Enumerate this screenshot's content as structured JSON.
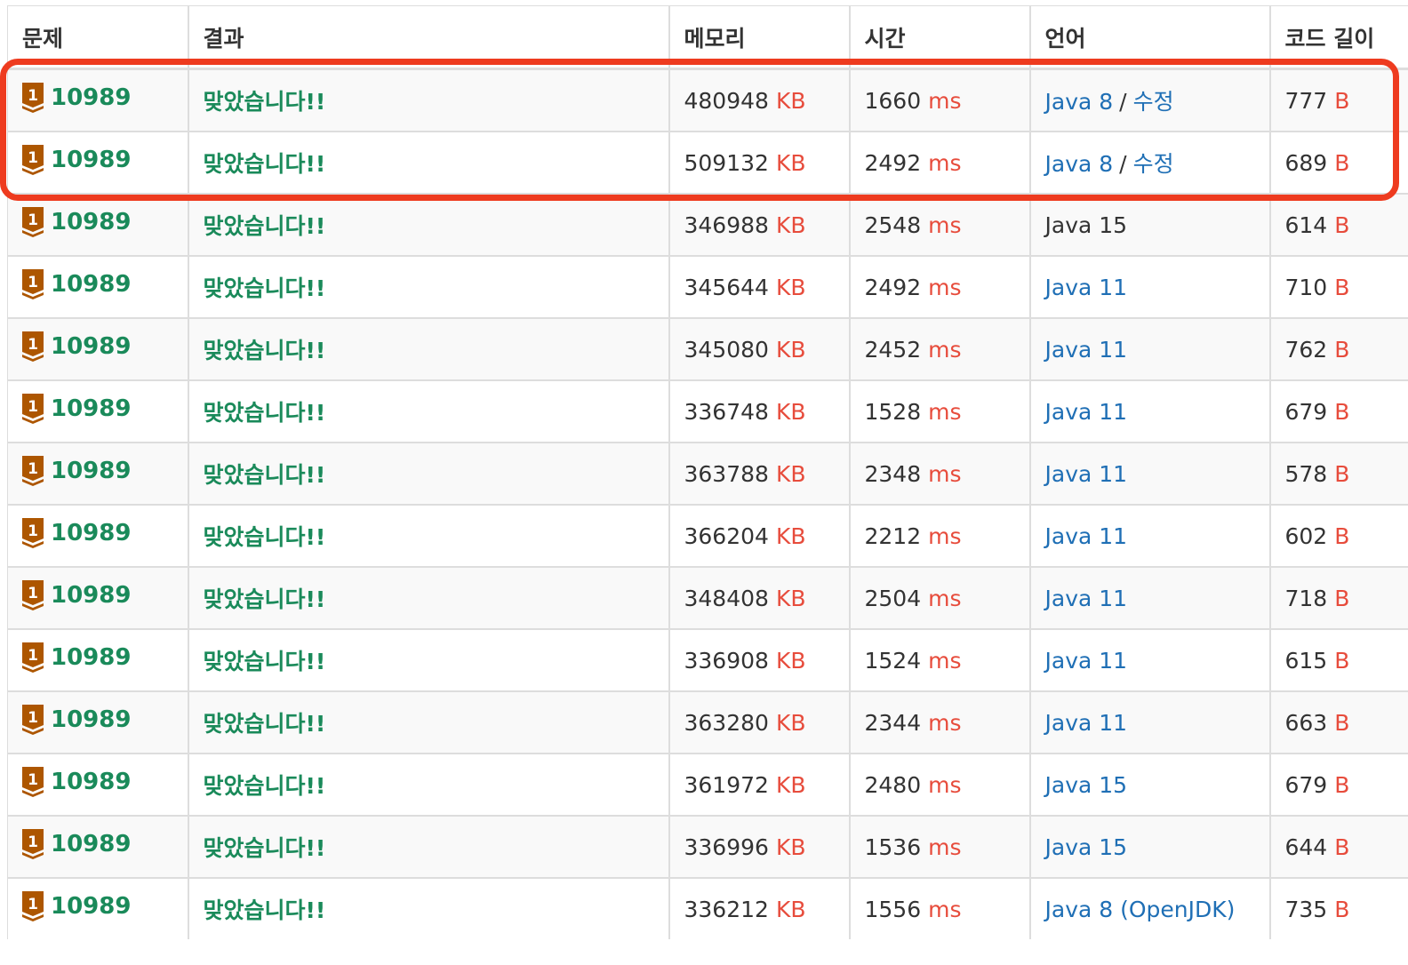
{
  "columns": [
    "문제",
    "결과",
    "메모리",
    "시간",
    "언어",
    "코드 길이"
  ],
  "units": {
    "memory": "KB",
    "time": "ms",
    "code_length": "B"
  },
  "colors": {
    "accepted": "#1a8a5a",
    "unit": "#e74c3c",
    "link": "#1f6fb5",
    "highlight": "#ee3b1f",
    "tier_bronze": "#ad5600"
  },
  "tier_icon": "bronze-tier-1-icon",
  "rows": [
    {
      "problem": "10989",
      "result": "맞았습니다!!",
      "memory": "480948",
      "time": "1660",
      "language": "Java 8",
      "edit": "수정",
      "lang_link": true,
      "code_length": "777"
    },
    {
      "problem": "10989",
      "result": "맞았습니다!!",
      "memory": "509132",
      "time": "2492",
      "language": "Java 8",
      "edit": "수정",
      "lang_link": true,
      "code_length": "689"
    },
    {
      "problem": "10989",
      "result": "맞았습니다!!",
      "memory": "346988",
      "time": "2548",
      "language": "Java 15",
      "edit": "",
      "lang_link": false,
      "code_length": "614"
    },
    {
      "problem": "10989",
      "result": "맞았습니다!!",
      "memory": "345644",
      "time": "2492",
      "language": "Java 11",
      "edit": "",
      "lang_link": true,
      "code_length": "710"
    },
    {
      "problem": "10989",
      "result": "맞았습니다!!",
      "memory": "345080",
      "time": "2452",
      "language": "Java 11",
      "edit": "",
      "lang_link": true,
      "code_length": "762"
    },
    {
      "problem": "10989",
      "result": "맞았습니다!!",
      "memory": "336748",
      "time": "1528",
      "language": "Java 11",
      "edit": "",
      "lang_link": true,
      "code_length": "679"
    },
    {
      "problem": "10989",
      "result": "맞았습니다!!",
      "memory": "363788",
      "time": "2348",
      "language": "Java 11",
      "edit": "",
      "lang_link": true,
      "code_length": "578"
    },
    {
      "problem": "10989",
      "result": "맞았습니다!!",
      "memory": "366204",
      "time": "2212",
      "language": "Java 11",
      "edit": "",
      "lang_link": true,
      "code_length": "602"
    },
    {
      "problem": "10989",
      "result": "맞았습니다!!",
      "memory": "348408",
      "time": "2504",
      "language": "Java 11",
      "edit": "",
      "lang_link": true,
      "code_length": "718"
    },
    {
      "problem": "10989",
      "result": "맞았습니다!!",
      "memory": "336908",
      "time": "1524",
      "language": "Java 11",
      "edit": "",
      "lang_link": true,
      "code_length": "615"
    },
    {
      "problem": "10989",
      "result": "맞았습니다!!",
      "memory": "363280",
      "time": "2344",
      "language": "Java 11",
      "edit": "",
      "lang_link": true,
      "code_length": "663"
    },
    {
      "problem": "10989",
      "result": "맞았습니다!!",
      "memory": "361972",
      "time": "2480",
      "language": "Java 15",
      "edit": "",
      "lang_link": true,
      "code_length": "679"
    },
    {
      "problem": "10989",
      "result": "맞았습니다!!",
      "memory": "336996",
      "time": "1536",
      "language": "Java 15",
      "edit": "",
      "lang_link": true,
      "code_length": "644"
    },
    {
      "problem": "10989",
      "result": "맞았습니다!!",
      "memory": "336212",
      "time": "1556",
      "language": "Java 8 (OpenJDK)",
      "edit": "",
      "lang_link": true,
      "code_length": "735"
    }
  ]
}
